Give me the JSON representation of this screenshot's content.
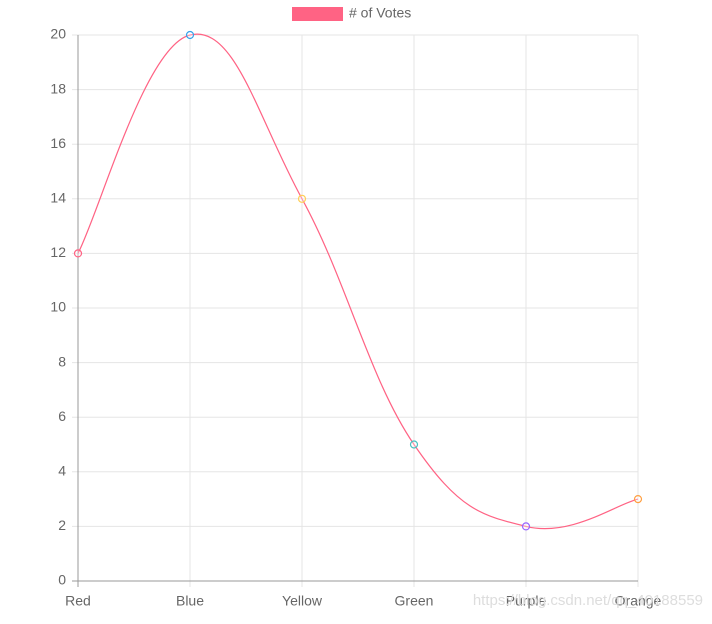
{
  "chart_data": {
    "type": "line",
    "categories": [
      "Red",
      "Blue",
      "Yellow",
      "Green",
      "Purple",
      "Orange"
    ],
    "series": [
      {
        "name": "# of Votes",
        "color": "#ff6384",
        "values": [
          12,
          20,
          14,
          5,
          2,
          3
        ],
        "point_colors": [
          "#ff6384",
          "#36a2eb",
          "#ffce56",
          "#4bc0c0",
          "#9966ff",
          "#ff9f40"
        ]
      }
    ],
    "ylim": [
      0,
      20
    ],
    "yticks": [
      0,
      2,
      4,
      6,
      8,
      10,
      12,
      14,
      16,
      18,
      20
    ],
    "grid": true,
    "legend": "top",
    "watermark": "https://blog.csdn.net/qq_40188559"
  }
}
